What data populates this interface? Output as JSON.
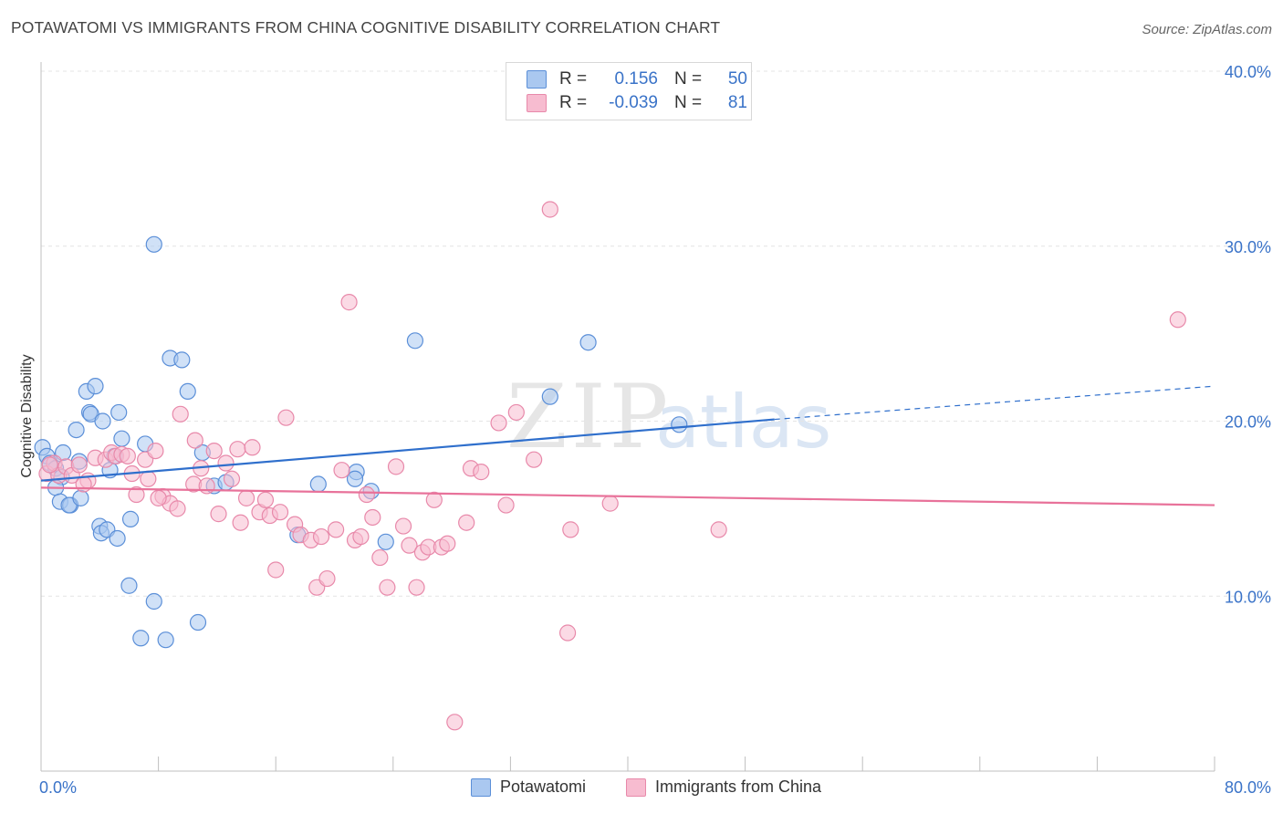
{
  "title": "POTAWATOMI VS IMMIGRANTS FROM CHINA COGNITIVE DISABILITY CORRELATION CHART",
  "source": "Source: ZipAtlas.com",
  "watermark": {
    "zip": "ZIP",
    "atlas": "atlas"
  },
  "legend": {
    "rows": [
      {
        "r_label": "R =",
        "r_value": "0.156",
        "n_label": "N =",
        "n_value": "50"
      },
      {
        "r_label": "R =",
        "r_value": "-0.039",
        "n_label": "N =",
        "n_value": "81"
      }
    ]
  },
  "bottom_legend": {
    "items": [
      "Potawatomi",
      "Immigrants from China"
    ]
  },
  "colors": {
    "blue_fill": "#aac8f0",
    "blue_stroke": "#5b8fd8",
    "blue_line": "#2f6fcc",
    "pink_fill": "#f7bcd0",
    "pink_stroke": "#e889aa",
    "pink_line": "#e8729a",
    "axis_label": "#3a73c8",
    "grid": "#e4e4e4"
  },
  "chart_data": {
    "type": "scatter",
    "title": "POTAWATOMI VS IMMIGRANTS FROM CHINA COGNITIVE DISABILITY CORRELATION CHART",
    "xlabel": "",
    "ylabel": "Cognitive Disability",
    "xlim": [
      0,
      80
    ],
    "ylim": [
      0,
      40
    ],
    "x_tick_labels": [
      "0.0%",
      "80.0%"
    ],
    "y_ticks": [
      10,
      20,
      30,
      40
    ],
    "y_tick_labels": [
      "10.0%",
      "20.0%",
      "30.0%",
      "40.0%"
    ],
    "grid": true,
    "legend_position": "top-center",
    "series": [
      {
        "name": "Potawatomi",
        "r": 0.156,
        "n": 50,
        "trend": {
          "x": [
            0,
            50
          ],
          "y": [
            16.6,
            20.1
          ],
          "dashed_extension_to": [
            80,
            22.0
          ]
        },
        "points": [
          [
            0.1,
            18.5
          ],
          [
            0.4,
            18.0
          ],
          [
            0.6,
            17.6
          ],
          [
            1.0,
            17.3
          ],
          [
            1.4,
            16.8
          ],
          [
            1.0,
            16.2
          ],
          [
            1.3,
            15.4
          ],
          [
            2.0,
            15.2
          ],
          [
            1.9,
            15.2
          ],
          [
            2.7,
            15.6
          ],
          [
            1.5,
            18.2
          ],
          [
            2.6,
            17.7
          ],
          [
            2.4,
            19.5
          ],
          [
            3.3,
            20.5
          ],
          [
            3.4,
            20.4
          ],
          [
            3.1,
            21.7
          ],
          [
            3.7,
            22.0
          ],
          [
            4.2,
            20.0
          ],
          [
            5.3,
            20.5
          ],
          [
            5.5,
            19.0
          ],
          [
            5.0,
            18.0
          ],
          [
            4.7,
            17.2
          ],
          [
            4.0,
            14.0
          ],
          [
            4.1,
            13.6
          ],
          [
            4.5,
            13.8
          ],
          [
            5.2,
            13.3
          ],
          [
            6.1,
            14.4
          ],
          [
            6.0,
            10.6
          ],
          [
            7.7,
            9.7
          ],
          [
            6.8,
            7.6
          ],
          [
            8.5,
            7.5
          ],
          [
            10.7,
            8.5
          ],
          [
            7.7,
            30.1
          ],
          [
            8.8,
            23.6
          ],
          [
            9.6,
            23.5
          ],
          [
            10.0,
            21.7
          ],
          [
            7.1,
            18.7
          ],
          [
            11.0,
            18.2
          ],
          [
            11.8,
            16.3
          ],
          [
            12.6,
            16.5
          ],
          [
            17.5,
            13.5
          ],
          [
            18.9,
            16.4
          ],
          [
            21.5,
            17.1
          ],
          [
            21.4,
            16.7
          ],
          [
            22.5,
            16.0
          ],
          [
            25.5,
            24.6
          ],
          [
            23.5,
            13.1
          ],
          [
            34.7,
            21.4
          ],
          [
            37.3,
            24.5
          ],
          [
            43.5,
            19.8
          ]
        ]
      },
      {
        "name": "Immigrants from China",
        "r": -0.039,
        "n": 81,
        "trend": {
          "x": [
            0,
            80
          ],
          "y": [
            16.2,
            15.2
          ]
        },
        "points": [
          [
            0.4,
            17.0
          ],
          [
            0.9,
            17.6
          ],
          [
            1.2,
            16.9
          ],
          [
            1.7,
            17.4
          ],
          [
            2.1,
            16.9
          ],
          [
            2.6,
            17.5
          ],
          [
            3.2,
            16.6
          ],
          [
            3.7,
            17.9
          ],
          [
            4.4,
            17.8
          ],
          [
            4.8,
            18.2
          ],
          [
            5.1,
            18.0
          ],
          [
            5.5,
            18.1
          ],
          [
            6.2,
            17.0
          ],
          [
            6.5,
            15.8
          ],
          [
            7.1,
            17.8
          ],
          [
            7.3,
            16.7
          ],
          [
            7.8,
            18.3
          ],
          [
            8.3,
            15.7
          ],
          [
            8.8,
            15.3
          ],
          [
            9.3,
            15.0
          ],
          [
            9.5,
            20.4
          ],
          [
            10.4,
            16.4
          ],
          [
            10.5,
            18.9
          ],
          [
            10.9,
            17.3
          ],
          [
            11.3,
            16.3
          ],
          [
            11.8,
            18.3
          ],
          [
            12.1,
            14.7
          ],
          [
            12.6,
            17.6
          ],
          [
            13.0,
            16.7
          ],
          [
            13.4,
            18.4
          ],
          [
            13.6,
            14.2
          ],
          [
            14.0,
            15.6
          ],
          [
            14.4,
            18.5
          ],
          [
            14.9,
            14.8
          ],
          [
            15.3,
            15.5
          ],
          [
            15.6,
            14.6
          ],
          [
            16.0,
            11.5
          ],
          [
            16.3,
            14.8
          ],
          [
            16.7,
            20.2
          ],
          [
            17.3,
            14.1
          ],
          [
            17.7,
            13.5
          ],
          [
            18.4,
            13.2
          ],
          [
            18.8,
            10.5
          ],
          [
            19.1,
            13.4
          ],
          [
            19.5,
            11.0
          ],
          [
            20.1,
            13.8
          ],
          [
            20.5,
            17.2
          ],
          [
            21.0,
            26.8
          ],
          [
            21.4,
            13.2
          ],
          [
            21.8,
            13.4
          ],
          [
            22.2,
            15.8
          ],
          [
            22.6,
            14.5
          ],
          [
            23.1,
            12.2
          ],
          [
            23.6,
            10.5
          ],
          [
            24.2,
            17.4
          ],
          [
            24.7,
            14.0
          ],
          [
            25.1,
            12.9
          ],
          [
            25.6,
            10.5
          ],
          [
            26.0,
            12.5
          ],
          [
            26.4,
            12.8
          ],
          [
            26.8,
            15.5
          ],
          [
            27.3,
            12.8
          ],
          [
            27.7,
            13.0
          ],
          [
            28.2,
            2.8
          ],
          [
            29.0,
            14.2
          ],
          [
            29.3,
            17.3
          ],
          [
            30.0,
            17.1
          ],
          [
            31.2,
            19.9
          ],
          [
            31.7,
            15.2
          ],
          [
            32.4,
            20.5
          ],
          [
            33.6,
            17.8
          ],
          [
            34.7,
            32.1
          ],
          [
            35.9,
            7.9
          ],
          [
            36.1,
            13.8
          ],
          [
            38.8,
            15.3
          ],
          [
            46.2,
            13.8
          ],
          [
            77.5,
            25.8
          ],
          [
            0.6,
            17.5
          ],
          [
            2.9,
            16.4
          ],
          [
            5.9,
            18.0
          ],
          [
            8.0,
            15.6
          ]
        ]
      }
    ]
  }
}
